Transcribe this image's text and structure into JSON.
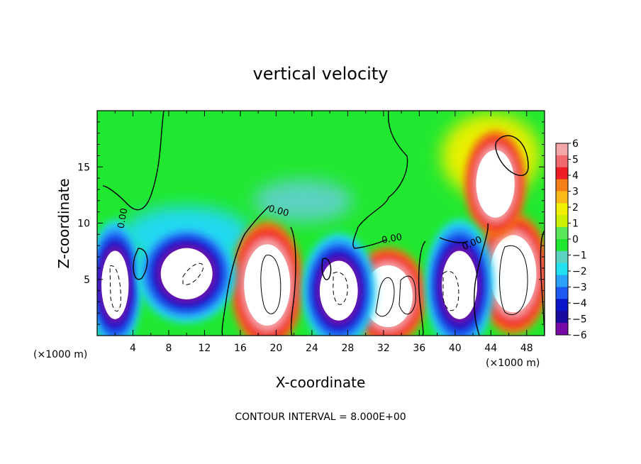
{
  "chart_data": {
    "type": "heatmap",
    "title": "vertical velocity",
    "xlabel": "X-coordinate",
    "ylabel": "Z-coordinate",
    "x_unit": "(×1000 m)",
    "x_ticks": [
      "4",
      "8",
      "12",
      "16",
      "20",
      "24",
      "28",
      "32",
      "36",
      "40",
      "44",
      "48"
    ],
    "y_ticks": [
      "5",
      "10",
      "15"
    ],
    "xlim": [
      0,
      50
    ],
    "ylim": [
      0,
      20
    ],
    "colorbar": {
      "min": -6,
      "max": 6,
      "labels": [
        "6",
        "5",
        "4",
        "3",
        "2",
        "1",
        "0",
        "−1",
        "−2",
        "−3",
        "−4",
        "−5",
        "−6"
      ],
      "colors": [
        "#f4a6a8",
        "#f06a6e",
        "#ee1c24",
        "#f57f17",
        "#fbb917",
        "#f0f000",
        "#ccf000",
        "#5ae85a",
        "#20e830",
        "#5cd2c0",
        "#22e0f0",
        "#2aa2f8",
        "#1e5af0",
        "#0a14c8",
        "#1a0aa0",
        "#7a0aa8"
      ]
    },
    "contour_labels": [
      "0.00",
      "0.00",
      "0.00",
      "0.00",
      "0.00"
    ],
    "note": "CONTOUR INTERVAL = 8.000E+00",
    "features": [
      {
        "kind": "updraft",
        "x": 19.0,
        "z": 4.5,
        "rx": 3.0,
        "rz": 4.2
      },
      {
        "kind": "updraft",
        "x": 32.5,
        "z": 3.5,
        "rx": 3.2,
        "rz": 3.2
      },
      {
        "kind": "updraft",
        "x": 46.5,
        "z": 5.5,
        "rx": 3.0,
        "rz": 4.0
      },
      {
        "kind": "updraft",
        "x": 44.5,
        "z": 13.5,
        "rx": 2.5,
        "rz": 3.5
      },
      {
        "kind": "downdraft",
        "x": 2.0,
        "z": 4.5,
        "rx": 2.0,
        "rz": 4.0
      },
      {
        "kind": "downdraft",
        "x": 10.0,
        "z": 5.5,
        "rx": 3.8,
        "rz": 3.0
      },
      {
        "kind": "downdraft",
        "x": 27.0,
        "z": 4.0,
        "rx": 2.8,
        "rz": 3.5
      },
      {
        "kind": "downdraft",
        "x": 40.5,
        "z": 4.5,
        "rx": 2.6,
        "rz": 4.0
      }
    ]
  }
}
